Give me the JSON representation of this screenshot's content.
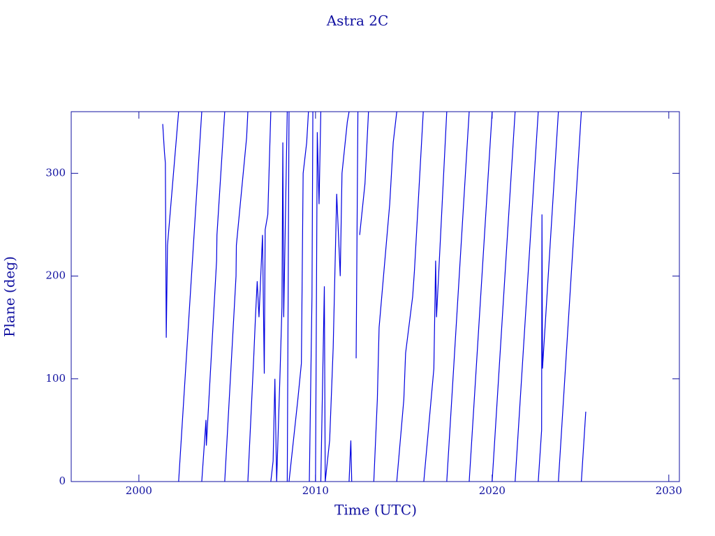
{
  "chart_data": {
    "type": "line",
    "title": "Astra 2C",
    "xlabel": "Time (UTC)",
    "ylabel": "Plane (deg)",
    "xlim": [
      1996.17,
      2030.6
    ],
    "ylim": [
      0,
      360
    ],
    "xticks": [
      2000,
      2010,
      2020,
      2030
    ],
    "yticks": [
      0,
      100,
      200,
      300
    ],
    "color": "#0000e0",
    "series": [
      {
        "name": "Astra 2C",
        "color": "#0000e0",
        "x": [
          2001.35,
          2001.45,
          2001.5,
          2001.55,
          2001.62,
          2002.25,
          null,
          2002.25,
          2003.56,
          null,
          2003.56,
          2003.8,
          2003.82,
          2004.4,
          2004.42,
          2004.86,
          null,
          2004.86,
          2005.5,
          2005.52,
          2006.1,
          2006.17,
          null,
          2006.17,
          2006.5,
          2006.6,
          2006.7,
          2006.8,
          2007.0,
          2007.1,
          2007.15,
          2007.3,
          2007.47,
          null,
          2007.47,
          2007.6,
          2007.7,
          2007.8,
          2008.0,
          2008.1,
          2008.15,
          2008.2,
          2008.4,
          null,
          2008.4,
          2008.5,
          null,
          2008.5,
          2009.0,
          2009.2,
          2009.3,
          2009.5,
          2009.6,
          null,
          2009.65,
          2009.8,
          2009.85,
          null,
          2010.0,
          2010.1,
          2010.2,
          2010.3,
          null,
          2010.3,
          2010.5,
          2010.55,
          2010.8,
          2011.0,
          2011.2,
          2011.4,
          2011.5,
          2011.8,
          2011.9,
          null,
          2011.9,
          2012.0,
          2012.05,
          null,
          2012.3,
          2012.4,
          null,
          2012.5,
          2012.8,
          2013.0,
          null,
          2013.3,
          2013.5,
          2013.6,
          2014.2,
          2014.4,
          2014.6,
          null,
          2014.6,
          2015.0,
          2015.1,
          2015.5,
          2015.6,
          2016.1,
          null,
          2016.13,
          2016.7,
          2016.8,
          2016.85,
          2017.43,
          null,
          2017.43,
          2018.7,
          null,
          2018.7,
          2020.0,
          null,
          2020.0,
          2021.3,
          null,
          2021.3,
          2022.61,
          null,
          2022.61,
          2022.8,
          2022.82,
          2022.85,
          2023.75,
          null,
          2023.75,
          2025.05,
          null,
          2025.05,
          2025.3
        ],
        "values": [
          348,
          320,
          310,
          140,
          230,
          360,
          null,
          0,
          360,
          null,
          0,
          60,
          35,
          215,
          240,
          360,
          null,
          0,
          200,
          230,
          335,
          360,
          null,
          0,
          120,
          160,
          195,
          160,
          240,
          105,
          245,
          260,
          360,
          null,
          0,
          20,
          100,
          0,
          110,
          170,
          330,
          160,
          360,
          null,
          0,
          360,
          null,
          0,
          80,
          115,
          300,
          330,
          360,
          null,
          0,
          180,
          360,
          null,
          0,
          340,
          270,
          360,
          null,
          0,
          190,
          0,
          40,
          130,
          280,
          200,
          300,
          350,
          360,
          null,
          0,
          40,
          0,
          null,
          120,
          360,
          null,
          240,
          290,
          360,
          null,
          0,
          80,
          150,
          270,
          330,
          360,
          null,
          0,
          80,
          125,
          180,
          205,
          360,
          null,
          0,
          110,
          215,
          160,
          360,
          null,
          0,
          360,
          null,
          0,
          360,
          null,
          0,
          360,
          null,
          0,
          360,
          null,
          0,
          50,
          260,
          110,
          360,
          null,
          0,
          360,
          null,
          0,
          68
        ]
      }
    ]
  }
}
